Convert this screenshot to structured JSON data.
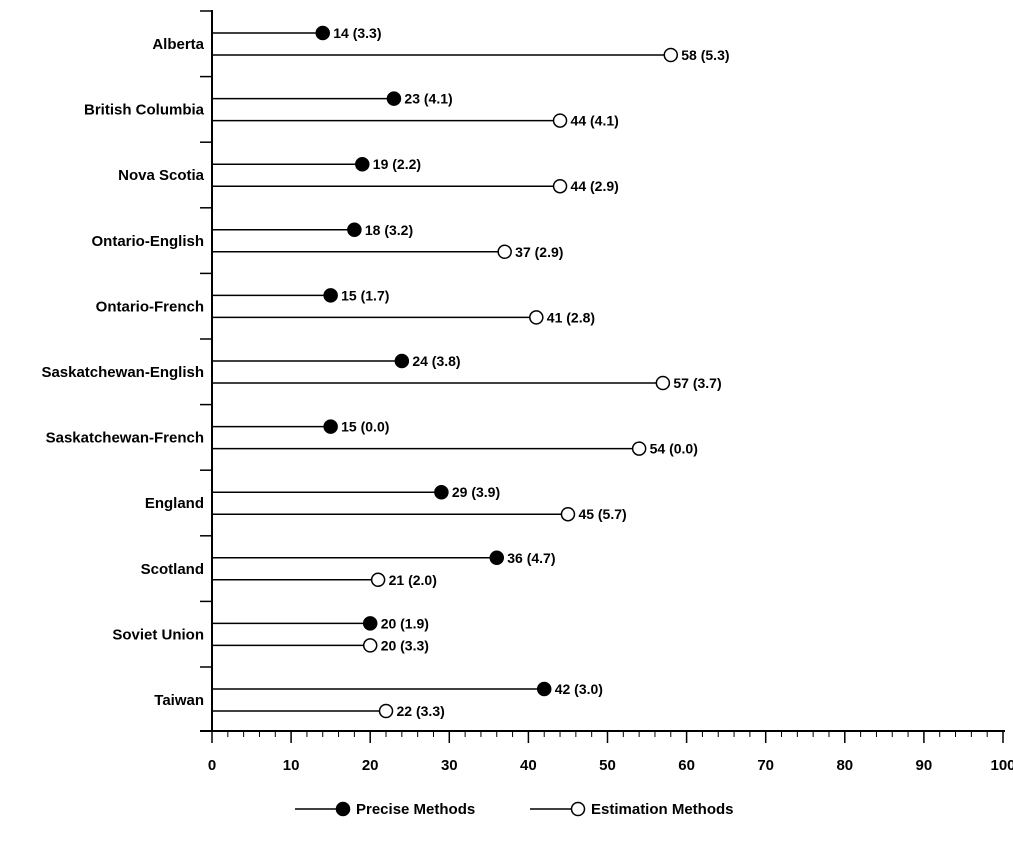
{
  "chart_data": {
    "type": "lollipop",
    "orientation": "horizontal",
    "categories": [
      "Alberta",
      "British Columbia",
      "Nova Scotia",
      "Ontario-English",
      "Ontario-French",
      "Saskatchewan-English",
      "Saskatchewan-French",
      "England",
      "Scotland",
      "Soviet Union",
      "Taiwan"
    ],
    "series": [
      {
        "name": "Precise Methods",
        "marker": "filled-circle",
        "values": [
          14,
          23,
          19,
          18,
          15,
          24,
          15,
          29,
          36,
          20,
          42
        ],
        "labels": [
          "14 (3.3)",
          "23 (4.1)",
          "19 (2.2)",
          "18 (3.2)",
          "15 (1.7)",
          "24 (3.8)",
          "15 (0.0)",
          "29 (3.9)",
          "36 (4.7)",
          "20 (1.9)",
          "42 (3.0)"
        ]
      },
      {
        "name": "Estimation Methods",
        "marker": "open-circle",
        "values": [
          58,
          44,
          44,
          37,
          41,
          57,
          54,
          45,
          21,
          20,
          22
        ],
        "labels": [
          "58 (5.3)",
          "44 (4.1)",
          "44 (2.9)",
          "37 (2.9)",
          "41 (2.8)",
          "57 (3.7)",
          "54 (0.0)",
          "45 (5.7)",
          "21 (2.0)",
          "20 (3.3)",
          "22 (3.3)"
        ]
      }
    ],
    "xlim": [
      0,
      100
    ],
    "xticks": [
      "0",
      "10",
      "20",
      "30",
      "40",
      "50",
      "60",
      "70",
      "80",
      "90",
      "100"
    ],
    "xlabel": "",
    "ylabel": "",
    "title": "",
    "grid": false,
    "legend_position": "bottom-center",
    "colors": {
      "line": "#000000",
      "filled_marker": "#000000",
      "open_marker_fill": "#ffffff"
    }
  }
}
